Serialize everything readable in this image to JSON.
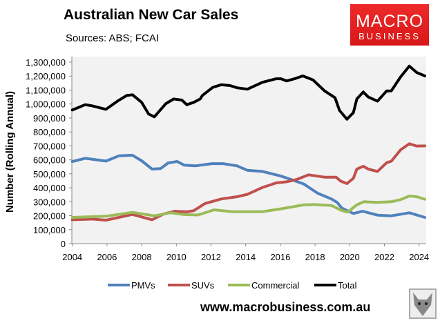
{
  "chart_data": {
    "type": "line",
    "title": "Australian New Car Sales",
    "subtitle": "Sources: ABS; FCAI",
    "ylabel": "Number (Rolling Annual)",
    "xlabel": "",
    "xlim": [
      2004,
      2024.5
    ],
    "ylim": [
      0,
      1300000
    ],
    "xticks": [
      "2004",
      "2006",
      "2008",
      "2010",
      "2012",
      "2014",
      "2016",
      "2018",
      "2020",
      "2022",
      "2024"
    ],
    "yticks": [
      "0",
      "100,000",
      "200,000",
      "300,000",
      "400,000",
      "500,000",
      "600,000",
      "700,000",
      "800,000",
      "900,000",
      "1,000,000",
      "1,100,000",
      "1,200,000",
      "1,300,000"
    ],
    "grid": false,
    "legend": "bottom",
    "series": [
      {
        "name": "PMVs",
        "color": "#4f81bd",
        "x": [
          2004,
          2004.74,
          2005.94,
          2006.7,
          2007.47,
          2008,
          2008.6,
          2009.1,
          2009.52,
          2010.05,
          2010.45,
          2011.1,
          2012.05,
          2012.7,
          2013.5,
          2014.1,
          2014.96,
          2016.03,
          2016.82,
          2017.35,
          2018.15,
          2018.95,
          2019.28,
          2019.55,
          2020.21,
          2020.74,
          2021.6,
          2022.4,
          2023.44,
          2024.33
        ],
        "values": [
          588000,
          611000,
          591000,
          629000,
          633000,
          593000,
          534000,
          538000,
          578000,
          588000,
          562000,
          557000,
          573000,
          573000,
          557000,
          525000,
          517000,
          484000,
          451000,
          427000,
          361000,
          320000,
          295000,
          254000,
          216000,
          232000,
          204000,
          199000,
          221000,
          188000
        ]
      },
      {
        "name": "SUVs",
        "color": "#c0504d",
        "x": [
          2004,
          2005.14,
          2005.94,
          2007.47,
          2008.6,
          2009.26,
          2009.92,
          2010.6,
          2011,
          2011.65,
          2012.58,
          2013.5,
          2014.1,
          2014.96,
          2015.76,
          2016.36,
          2016.96,
          2017.62,
          2018.55,
          2019.21,
          2019.48,
          2019.84,
          2020.21,
          2020.41,
          2020.78,
          2021.07,
          2021.6,
          2022.13,
          2022.4,
          2022.93,
          2023.44,
          2023.86,
          2024.33
        ],
        "values": [
          171000,
          176000,
          168000,
          209000,
          171000,
          212000,
          232000,
          228000,
          236000,
          287000,
          320000,
          336000,
          353000,
          402000,
          435000,
          443000,
          460000,
          493000,
          476000,
          476000,
          448000,
          430000,
          468000,
          534000,
          554000,
          534000,
          517000,
          580000,
          590000,
          671000,
          715000,
          699000,
          700000
        ]
      },
      {
        "name": "Commercial",
        "color": "#9bbb59",
        "x": [
          2004,
          2005.94,
          2007.47,
          2008.73,
          2009.66,
          2010.45,
          2011.25,
          2012.18,
          2013.24,
          2014.1,
          2014.96,
          2016.03,
          2017.35,
          2017.95,
          2018.95,
          2019.55,
          2019.88,
          2020.41,
          2020.81,
          2021.6,
          2022.4,
          2022.93,
          2023.44,
          2023.86,
          2024.33
        ],
        "values": [
          188000,
          196000,
          224000,
          199000,
          221000,
          208000,
          205000,
          242000,
          229000,
          229000,
          229000,
          249000,
          278000,
          280000,
          273000,
          237000,
          226000,
          278000,
          300000,
          295000,
          300000,
          315000,
          341000,
          336000,
          318000
        ]
      },
      {
        "name": "Total",
        "color": "#000000",
        "x": [
          2004,
          2004.74,
          2005.14,
          2005.94,
          2006.6,
          2007.13,
          2007.47,
          2008,
          2008.4,
          2008.73,
          2009.4,
          2009.85,
          2010.32,
          2010.6,
          2011,
          2011.38,
          2011.5,
          2012.1,
          2012.58,
          2013.1,
          2013.5,
          2014.1,
          2014.96,
          2015.76,
          2016.03,
          2016.36,
          2016.82,
          2017.29,
          2017.89,
          2018.55,
          2019.15,
          2019.41,
          2019.84,
          2020.21,
          2020.41,
          2020.78,
          2021.07,
          2021.6,
          2022.13,
          2022.4,
          2022.93,
          2023.44,
          2023.86,
          2024.33
        ],
        "values": [
          957000,
          995000,
          987000,
          962000,
          1020000,
          1061000,
          1066000,
          1012000,
          929000,
          908000,
          1003000,
          1036000,
          1028000,
          995000,
          1012000,
          1036000,
          1061000,
          1119000,
          1138000,
          1132000,
          1116000,
          1106000,
          1155000,
          1181000,
          1181000,
          1165000,
          1181000,
          1201000,
          1172000,
          1094000,
          1045000,
          954000,
          891000,
          938000,
          1036000,
          1086000,
          1050000,
          1020000,
          1094000,
          1094000,
          1193000,
          1272000,
          1226000,
          1201000
        ]
      }
    ]
  },
  "logo": {
    "line1": "MACRO",
    "line2": "BUSINESS"
  },
  "footer": {
    "url": "www.macrobusiness.com.au"
  }
}
